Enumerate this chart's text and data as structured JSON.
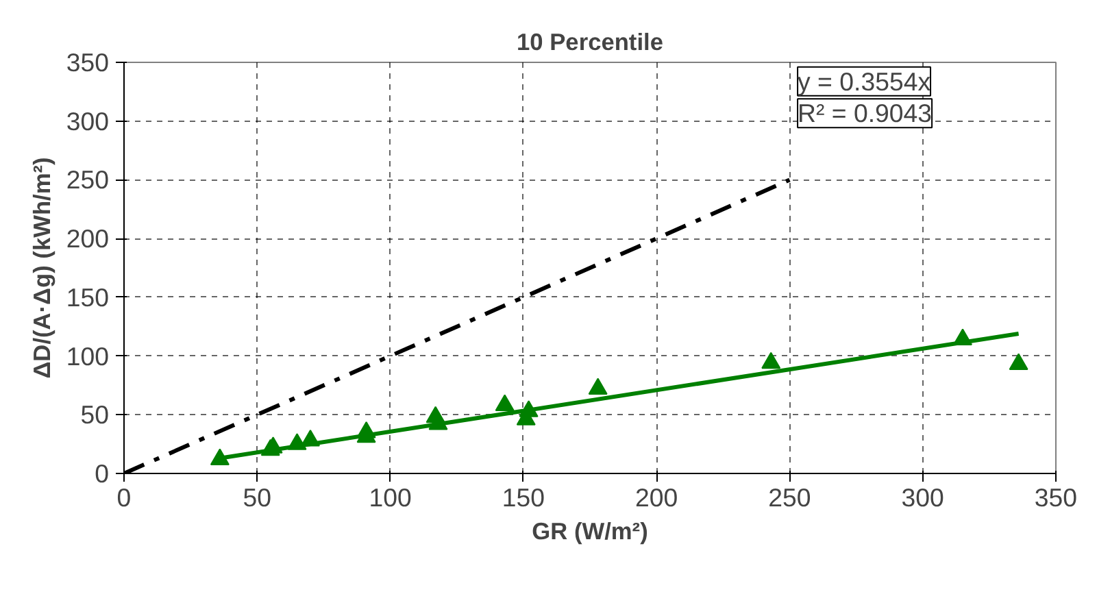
{
  "chart_data": {
    "type": "scatter",
    "title": "10 Percentile",
    "xlabel": "GR (W/m²)",
    "ylabel": "ΔD/(A·Δg) (kWh/m²)",
    "xlim": [
      0,
      350
    ],
    "ylim": [
      0,
      350
    ],
    "xticks": [
      0,
      50,
      100,
      150,
      200,
      250,
      300,
      350
    ],
    "yticks": [
      0,
      50,
      100,
      150,
      200,
      250,
      300,
      350
    ],
    "grid": true,
    "series": [
      {
        "color": "#008000",
        "marker": "triangle",
        "x": [
          36,
          55,
          56,
          65,
          70,
          91,
          91,
          117,
          118,
          143,
          151,
          152,
          178,
          243,
          315,
          336
        ],
        "values": [
          12,
          20,
          22,
          25,
          28,
          31,
          35,
          48,
          42,
          58,
          46,
          53,
          72,
          94,
          114,
          93
        ]
      },
      {
        "type": "line",
        "color": "#008000",
        "line_style": "solid",
        "x": [
          36,
          336
        ],
        "values": [
          13,
          119
        ]
      },
      {
        "type": "line",
        "color": "#000000",
        "line_style": "dashed",
        "x": [
          0,
          250
        ],
        "values": [
          0,
          250
        ]
      }
    ],
    "annotations": [
      "y = 0.3554x",
      "R² = 0.9043"
    ]
  }
}
